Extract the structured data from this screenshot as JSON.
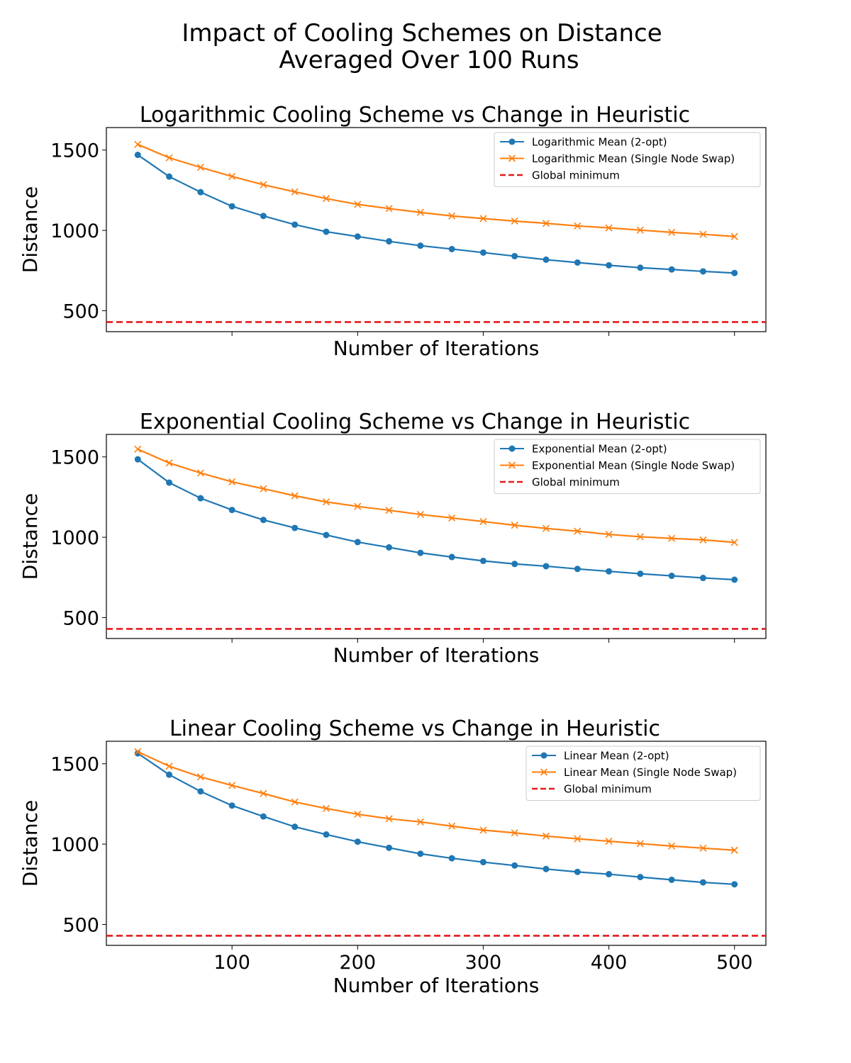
{
  "figure": {
    "suptitle_line1": "Impact of Cooling Schemes on Distance",
    "suptitle_line2": "Averaged Over 100 Runs"
  },
  "colors": {
    "two_opt": "#1f77b4",
    "single_node_swap": "#ff7f0e",
    "global_min": "#e41a1c"
  },
  "chart_data": [
    {
      "type": "line",
      "title": "Logarithmic Cooling Scheme vs Change in Heuristic",
      "xlabel": "Number of Iterations",
      "ylabel": "Distance",
      "xlim": [
        0,
        525
      ],
      "ylim": [
        370,
        1640
      ],
      "xticks": [
        100,
        200,
        300,
        400,
        500
      ],
      "show_xtick_labels": false,
      "yticks": [
        500,
        1000,
        1500
      ],
      "legend_position": "top-right",
      "x": [
        25,
        50,
        75,
        100,
        125,
        150,
        175,
        200,
        225,
        250,
        275,
        300,
        325,
        350,
        375,
        400,
        425,
        450,
        475,
        500
      ],
      "series": [
        {
          "name": "Logarithmic Mean (2-opt)",
          "marker": "circle",
          "color": "#1f77b4",
          "values": [
            1470,
            1335,
            1238,
            1150,
            1090,
            1036,
            992,
            962,
            932,
            905,
            884,
            862,
            840,
            818,
            800,
            783,
            768,
            757,
            745,
            735
          ]
        },
        {
          "name": "Logarithmic Mean (Single Node Swap)",
          "marker": "x",
          "color": "#ff7f0e",
          "values": [
            1535,
            1452,
            1392,
            1336,
            1284,
            1240,
            1198,
            1162,
            1136,
            1112,
            1090,
            1074,
            1058,
            1044,
            1028,
            1016,
            1002,
            988,
            976,
            962
          ]
        }
      ],
      "reference_line": {
        "name": "Global minimum",
        "y": 430,
        "style": "dashed",
        "color": "#e41a1c"
      }
    },
    {
      "type": "line",
      "title": "Exponential Cooling Scheme vs Change in Heuristic",
      "xlabel": "Number of Iterations",
      "ylabel": "Distance",
      "xlim": [
        0,
        525
      ],
      "ylim": [
        370,
        1640
      ],
      "xticks": [
        100,
        200,
        300,
        400,
        500
      ],
      "show_xtick_labels": false,
      "yticks": [
        500,
        1000,
        1500
      ],
      "legend_position": "top-right",
      "x": [
        25,
        50,
        75,
        100,
        125,
        150,
        175,
        200,
        225,
        250,
        275,
        300,
        325,
        350,
        375,
        400,
        425,
        450,
        475,
        500
      ],
      "series": [
        {
          "name": "Exponential Mean (2-opt)",
          "marker": "circle",
          "color": "#1f77b4",
          "values": [
            1485,
            1340,
            1243,
            1170,
            1108,
            1058,
            1014,
            970,
            937,
            903,
            877,
            853,
            834,
            820,
            803,
            788,
            773,
            760,
            747,
            736
          ]
        },
        {
          "name": "Exponential Mean (Single Node Swap)",
          "marker": "x",
          "color": "#ff7f0e",
          "values": [
            1548,
            1462,
            1400,
            1345,
            1302,
            1258,
            1220,
            1192,
            1168,
            1142,
            1120,
            1098,
            1075,
            1055,
            1038,
            1018,
            1003,
            993,
            984,
            968
          ]
        }
      ],
      "reference_line": {
        "name": "Global minimum",
        "y": 430,
        "style": "dashed",
        "color": "#e41a1c"
      }
    },
    {
      "type": "line",
      "title": "Linear Cooling Scheme vs Change in Heuristic",
      "xlabel": "Number of Iterations",
      "ylabel": "Distance",
      "xlim": [
        0,
        525
      ],
      "ylim": [
        370,
        1640
      ],
      "xticks": [
        100,
        200,
        300,
        400,
        500
      ],
      "show_xtick_labels": true,
      "yticks": [
        500,
        1000,
        1500
      ],
      "legend_position": "top-right",
      "x": [
        25,
        50,
        75,
        100,
        125,
        150,
        175,
        200,
        225,
        250,
        275,
        300,
        325,
        350,
        375,
        400,
        425,
        450,
        475,
        500
      ],
      "series": [
        {
          "name": "Linear Mean (2-opt)",
          "marker": "circle",
          "color": "#1f77b4",
          "values": [
            1565,
            1432,
            1328,
            1240,
            1172,
            1108,
            1060,
            1015,
            977,
            940,
            912,
            888,
            867,
            845,
            827,
            813,
            795,
            778,
            762,
            750
          ]
        },
        {
          "name": "Linear Mean (Single Node Swap)",
          "marker": "x",
          "color": "#ff7f0e",
          "values": [
            1575,
            1485,
            1418,
            1365,
            1315,
            1262,
            1222,
            1186,
            1158,
            1138,
            1112,
            1087,
            1070,
            1050,
            1033,
            1018,
            1003,
            988,
            975,
            962
          ]
        }
      ],
      "reference_line": {
        "name": "Global minimum",
        "y": 430,
        "style": "dashed",
        "color": "#e41a1c"
      }
    }
  ]
}
